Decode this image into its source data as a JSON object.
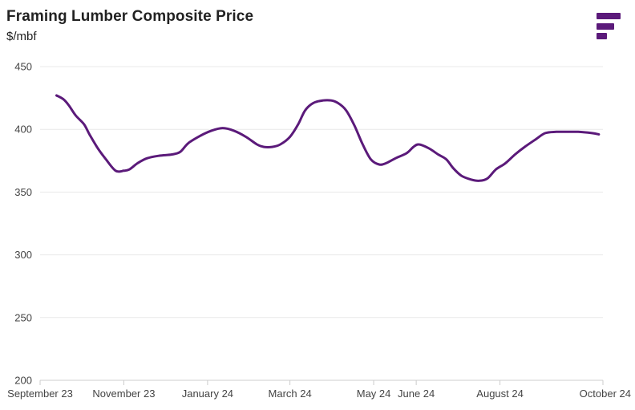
{
  "header": {
    "title": "Framing Lumber Composite Price",
    "subtitle": "$/mbf"
  },
  "logo": {
    "icon": "brand-logo-icon",
    "color": "#5b1a7a"
  },
  "colors": {
    "line": "#5b1a7a",
    "grid": "#e9e9e9",
    "axis": "#cccccc"
  },
  "chart_data": {
    "type": "line",
    "title": "Framing Lumber Composite Price",
    "subtitle": "$/mbf",
    "ylim": [
      200,
      450
    ],
    "yticks": [
      200,
      250,
      300,
      350,
      400,
      450
    ],
    "xlim": [
      "2023-09-01",
      "2024-10-15"
    ],
    "xticks": [
      {
        "date": "2023-09-01",
        "label": "September 23"
      },
      {
        "date": "2023-11-01",
        "label": "November 23"
      },
      {
        "date": "2024-01-01",
        "label": "January 24"
      },
      {
        "date": "2024-03-01",
        "label": "March 24"
      },
      {
        "date": "2024-05-01",
        "label": "May 24"
      },
      {
        "date": "2024-06-01",
        "label": "June 24"
      },
      {
        "date": "2024-08-01",
        "label": "August 24"
      },
      {
        "date": "2024-10-15",
        "label": "October 24"
      }
    ],
    "grid": true,
    "series": [
      {
        "color": "#5b1a7a",
        "points": [
          [
            "2023-09-13",
            427
          ],
          [
            "2023-09-18",
            424
          ],
          [
            "2023-09-22",
            419
          ],
          [
            "2023-09-27",
            411
          ],
          [
            "2023-10-03",
            404
          ],
          [
            "2023-10-07",
            396
          ],
          [
            "2023-10-13",
            385
          ],
          [
            "2023-10-19",
            376
          ],
          [
            "2023-10-26",
            367
          ],
          [
            "2023-11-01",
            367
          ],
          [
            "2023-11-05",
            368
          ],
          [
            "2023-11-11",
            373
          ],
          [
            "2023-11-18",
            377
          ],
          [
            "2023-11-27",
            379
          ],
          [
            "2023-12-06",
            380
          ],
          [
            "2023-12-12",
            382
          ],
          [
            "2023-12-18",
            389
          ],
          [
            "2023-12-27",
            395
          ],
          [
            "2024-01-04",
            399
          ],
          [
            "2024-01-12",
            401
          ],
          [
            "2024-01-20",
            399
          ],
          [
            "2024-01-29",
            394
          ],
          [
            "2024-02-06",
            388
          ],
          [
            "2024-02-11",
            386
          ],
          [
            "2024-02-17",
            386
          ],
          [
            "2024-02-23",
            388
          ],
          [
            "2024-03-01",
            394
          ],
          [
            "2024-03-07",
            404
          ],
          [
            "2024-03-12",
            415
          ],
          [
            "2024-03-18",
            421
          ],
          [
            "2024-03-25",
            423
          ],
          [
            "2024-03-31",
            423
          ],
          [
            "2024-04-05",
            421
          ],
          [
            "2024-04-11",
            415
          ],
          [
            "2024-04-17",
            403
          ],
          [
            "2024-04-23",
            388
          ],
          [
            "2024-04-29",
            376
          ],
          [
            "2024-05-05",
            372
          ],
          [
            "2024-05-10",
            373
          ],
          [
            "2024-05-17",
            377
          ],
          [
            "2024-05-25",
            381
          ],
          [
            "2024-05-30",
            386
          ],
          [
            "2024-06-03",
            388
          ],
          [
            "2024-06-10",
            385
          ],
          [
            "2024-06-17",
            380
          ],
          [
            "2024-06-23",
            376
          ],
          [
            "2024-06-28",
            369
          ],
          [
            "2024-07-04",
            363
          ],
          [
            "2024-07-11",
            360
          ],
          [
            "2024-07-17",
            359
          ],
          [
            "2024-07-23",
            361
          ],
          [
            "2024-07-29",
            368
          ],
          [
            "2024-08-05",
            373
          ],
          [
            "2024-08-12",
            380
          ],
          [
            "2024-08-19",
            386
          ],
          [
            "2024-08-27",
            392
          ],
          [
            "2024-09-03",
            397
          ],
          [
            "2024-09-11",
            398
          ],
          [
            "2024-09-19",
            398
          ],
          [
            "2024-09-27",
            398
          ],
          [
            "2024-10-07",
            397
          ],
          [
            "2024-10-12",
            396
          ]
        ]
      }
    ]
  }
}
